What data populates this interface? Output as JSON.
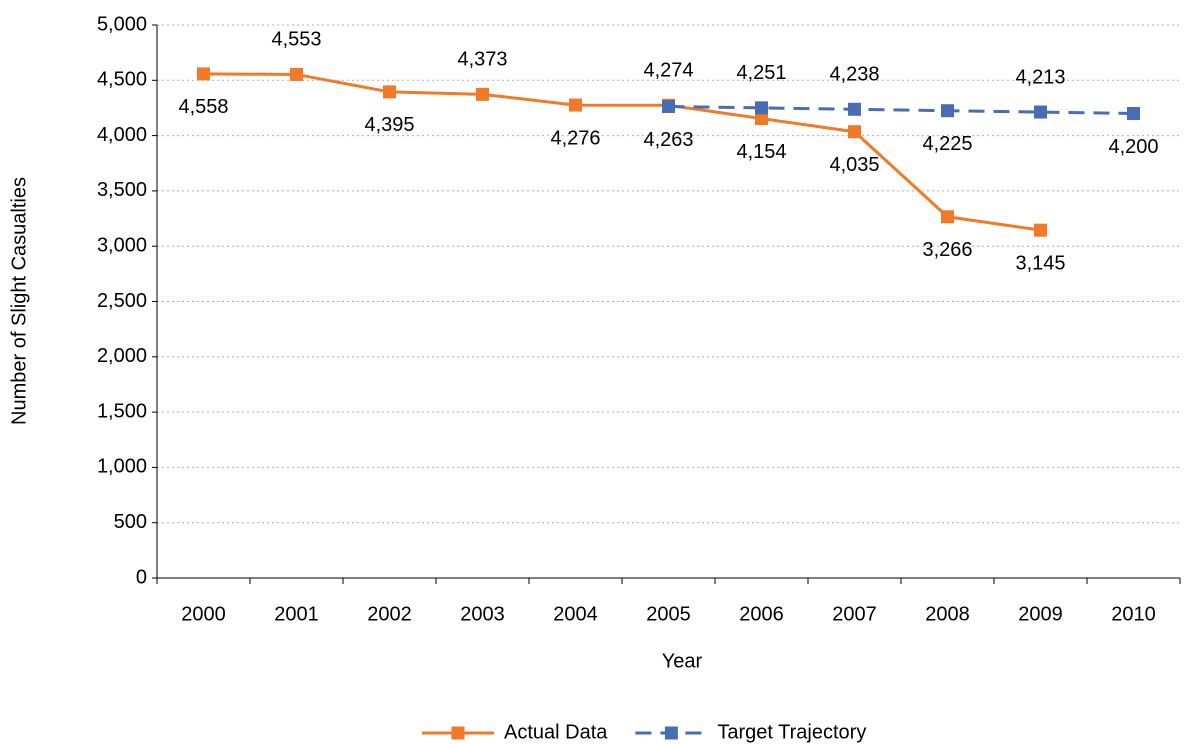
{
  "chart_data": {
    "type": "line",
    "x_label": "Year",
    "y_label": "Number of Slight Casualties",
    "categories": [
      "2000",
      "2001",
      "2002",
      "2003",
      "2004",
      "2005",
      "2006",
      "2007",
      "2008",
      "2009",
      "2010"
    ],
    "series": [
      {
        "name": "Actual Data",
        "color": "#f07a28",
        "dashed": false,
        "values": [
          4558,
          4553,
          4395,
          4373,
          4276,
          4274,
          4154,
          4035,
          3266,
          3145,
          null
        ],
        "value_labels": [
          "4,558",
          "4,553",
          "4,395",
          "4,373",
          "4,276",
          "4,274",
          "4,154",
          "4,035",
          "3,266",
          "3,145",
          null
        ]
      },
      {
        "name": "Target Trajectory",
        "color": "#4a6cb3",
        "dashed": true,
        "values": [
          null,
          null,
          null,
          null,
          null,
          4263,
          4251,
          4238,
          4225,
          4213,
          4200
        ],
        "value_labels": [
          null,
          null,
          null,
          null,
          null,
          "4,263",
          "4,251",
          "4,238",
          "4,225",
          "4,213",
          "4,200"
        ]
      }
    ],
    "ylim": [
      0,
      5000
    ],
    "yticks": [
      {
        "value": 0,
        "label": "0"
      },
      {
        "value": 500,
        "label": "500"
      },
      {
        "value": 1000,
        "label": "1,000"
      },
      {
        "value": 1500,
        "label": "1,500"
      },
      {
        "value": 2000,
        "label": "2,000"
      },
      {
        "value": 2500,
        "label": "2,500"
      },
      {
        "value": 3000,
        "label": "3,000"
      },
      {
        "value": 3500,
        "label": "3,500"
      },
      {
        "value": 4000,
        "label": "4,000"
      },
      {
        "value": 4500,
        "label": "4,500"
      },
      {
        "value": 5000,
        "label": "5,000"
      }
    ],
    "grid": true,
    "legend": "bottom"
  }
}
